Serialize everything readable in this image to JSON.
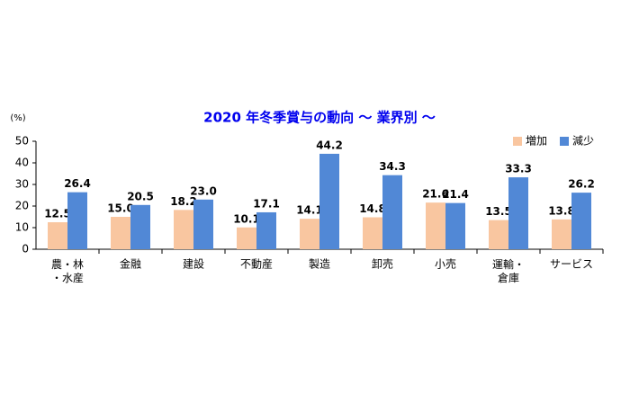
{
  "chart_data": {
    "type": "bar",
    "title": "2020 年冬季賞与の動向 ～ 業界別 ～",
    "y_unit": "(%)",
    "categories": [
      "農・林\n・水産",
      "金融",
      "建設",
      "不動産",
      "製造",
      "卸売",
      "小売",
      "運輸・\n倉庫",
      "サービス"
    ],
    "series": [
      {
        "name": "増加",
        "color": "#f9c6a0",
        "values": [
          12.5,
          15.0,
          18.2,
          10.1,
          14.1,
          14.8,
          21.6,
          13.5,
          13.8
        ],
        "value_labels": [
          "12.5",
          "15.0",
          "18.2",
          "10.1",
          "14.1",
          "14.8",
          "21.6",
          "13.5",
          "13.8"
        ]
      },
      {
        "name": "減少",
        "color": "#5188d6",
        "values": [
          26.4,
          20.5,
          23.0,
          17.1,
          44.2,
          34.3,
          21.4,
          33.3,
          26.2
        ],
        "value_labels": [
          "26.4",
          "20.5",
          "23.0",
          "17.1",
          "44.2",
          "34.3",
          "21.4",
          "33.3",
          "26.2"
        ]
      }
    ],
    "ylim": [
      0,
      50
    ],
    "yticks": [
      0,
      10,
      20,
      30,
      40,
      50
    ],
    "grid": false,
    "legend": "top-right"
  }
}
